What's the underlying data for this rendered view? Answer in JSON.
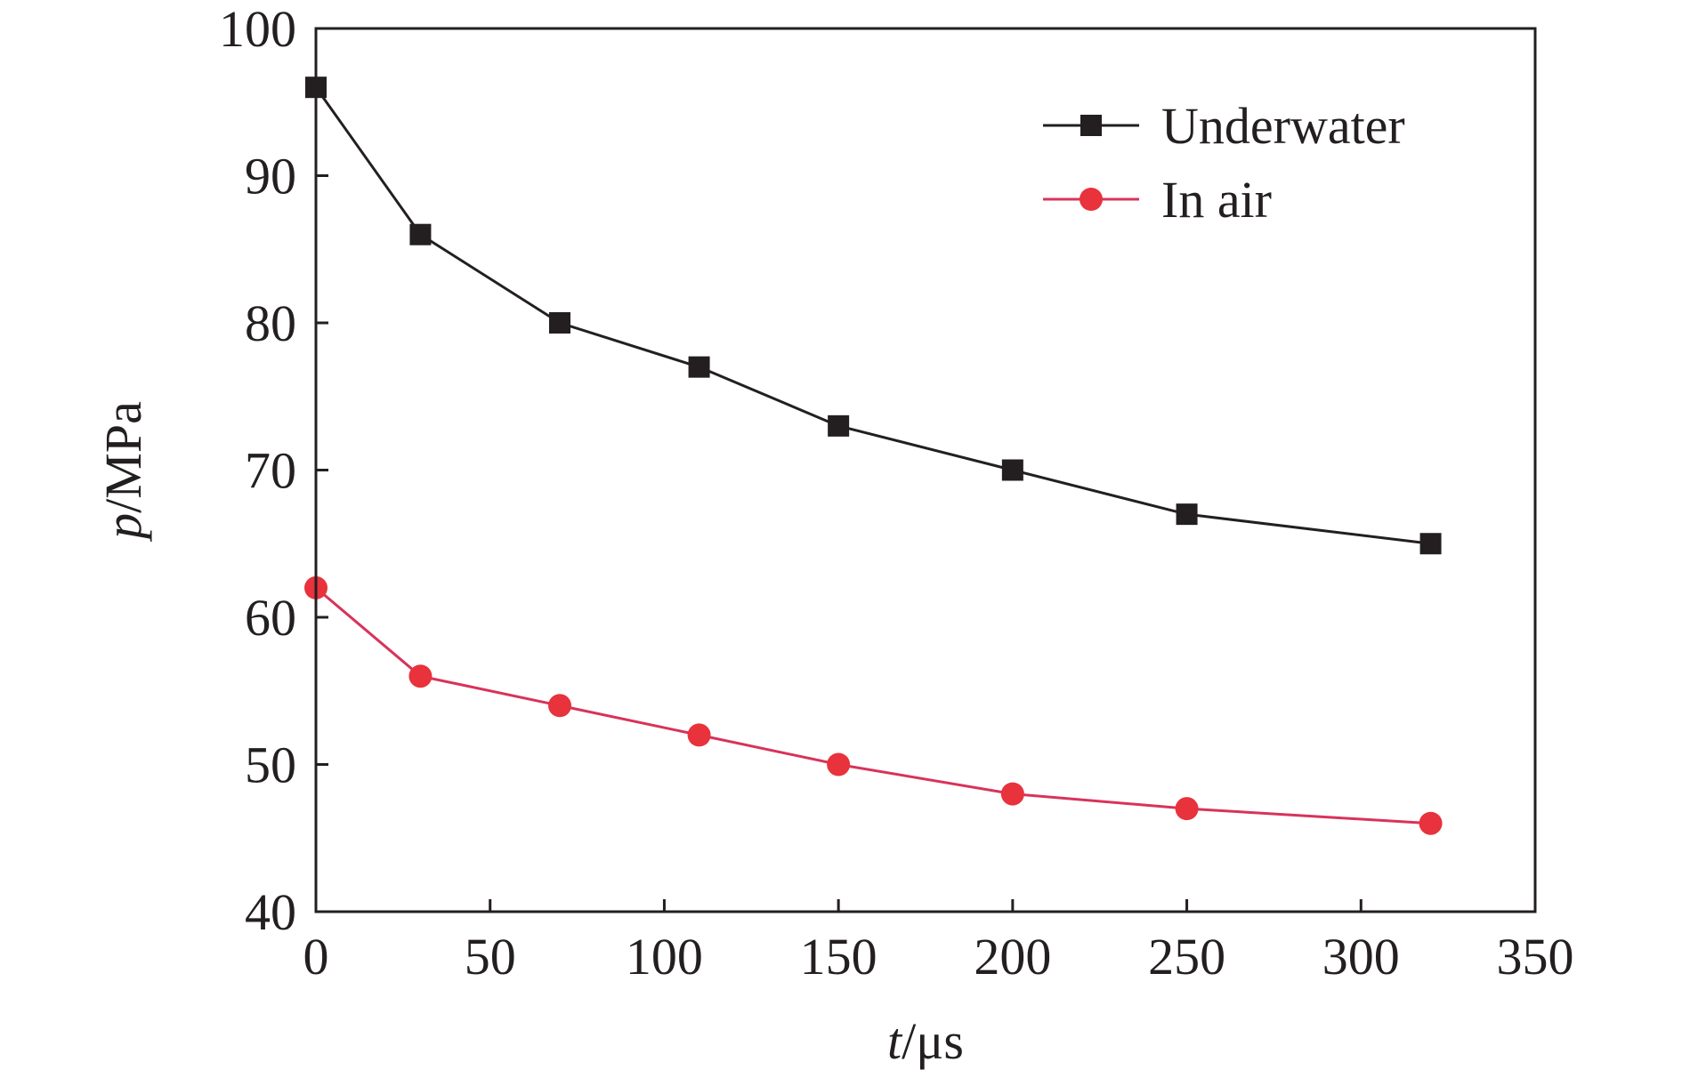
{
  "chart_data": {
    "type": "line",
    "title": "",
    "xlabel": {
      "var": "t",
      "unit": "/μs"
    },
    "ylabel": {
      "var": "p",
      "unit": "/MPa"
    },
    "xlim": [
      0,
      350
    ],
    "ylim": [
      40,
      100
    ],
    "xticks": [
      0,
      50,
      100,
      150,
      200,
      250,
      300,
      350
    ],
    "yticks": [
      40,
      50,
      60,
      70,
      80,
      90,
      100
    ],
    "grid": false,
    "legend": "top-right",
    "series": [
      {
        "name": "Underwater",
        "marker": "square",
        "color": "#231f20",
        "x": [
          0,
          30,
          70,
          110,
          150,
          200,
          250,
          320
        ],
        "y": [
          96,
          86,
          80,
          77,
          73,
          70,
          67,
          65
        ]
      },
      {
        "name": "In air",
        "marker": "circle",
        "color": "#e8323c",
        "line_color": "#d8335a",
        "x": [
          0,
          30,
          70,
          110,
          150,
          200,
          250,
          320
        ],
        "y": [
          62,
          56,
          54,
          52,
          50,
          48,
          47,
          46
        ]
      }
    ]
  }
}
